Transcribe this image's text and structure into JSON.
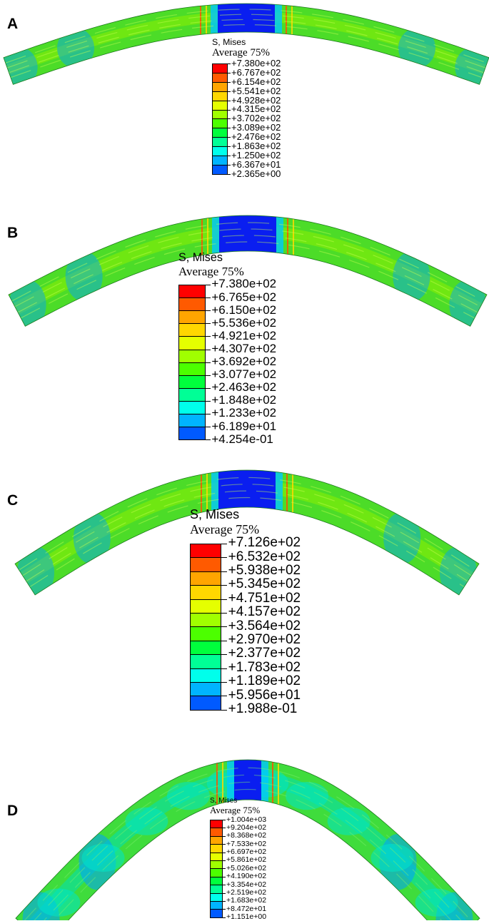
{
  "panels": [
    {
      "label": "A",
      "legend": {
        "title": "S, Mises",
        "subtitle": "Average 75%",
        "values": [
          "+7.380e+02",
          "+6.767e+02",
          "+6.154e+02",
          "+5.541e+02",
          "+4.928e+02",
          "+4.315e+02",
          "+3.702e+02",
          "+3.089e+02",
          "+2.476e+02",
          "+1.863e+02",
          "+1.250e+02",
          "+6.367e+01",
          "+2.365e+00"
        ]
      }
    },
    {
      "label": "B",
      "legend": {
        "title": "S, Mises",
        "subtitle": "Average 75%",
        "values": [
          "+7.380e+02",
          "+6.765e+02",
          "+6.150e+02",
          "+5.536e+02",
          "+4.921e+02",
          "+4.307e+02",
          "+3.692e+02",
          "+3.077e+02",
          "+2.463e+02",
          "+1.848e+02",
          "+1.233e+02",
          "+6.189e+01",
          "+4.254e-01"
        ]
      }
    },
    {
      "label": "C",
      "legend": {
        "title": "S, Mises",
        "subtitle": "Average 75%",
        "values": [
          "+7.126e+02",
          "+6.532e+02",
          "+5.938e+02",
          "+5.345e+02",
          "+4.751e+02",
          "+4.157e+02",
          "+3.564e+02",
          "+2.970e+02",
          "+2.377e+02",
          "+1.783e+02",
          "+1.189e+02",
          "+5.956e+01",
          "+1.988e-01"
        ]
      }
    },
    {
      "label": "D",
      "legend": {
        "title": "S, Mises",
        "subtitle": "Average 75%",
        "values": [
          "+1.004e+03",
          "+9.204e+02",
          "+8.368e+02",
          "+7.533e+02",
          "+6.697e+02",
          "+5.861e+02",
          "+5.026e+02",
          "+4.190e+02",
          "+3.354e+02",
          "+2.519e+02",
          "+1.683e+02",
          "+8.472e+01",
          "+1.151e+00"
        ]
      }
    }
  ],
  "colors": {
    "scale12": [
      "#ff0000",
      "#ff5a00",
      "#ffa500",
      "#ffd700",
      "#e5ff00",
      "#a0ff00",
      "#4cff00",
      "#00ff3c",
      "#00ff96",
      "#00ffeb",
      "#00b4ff",
      "#005aff",
      "#0000ff"
    ],
    "body_green": "#4cdc28",
    "body_cyan": "#00e6c8",
    "center_blue": "#0a1ef0"
  }
}
